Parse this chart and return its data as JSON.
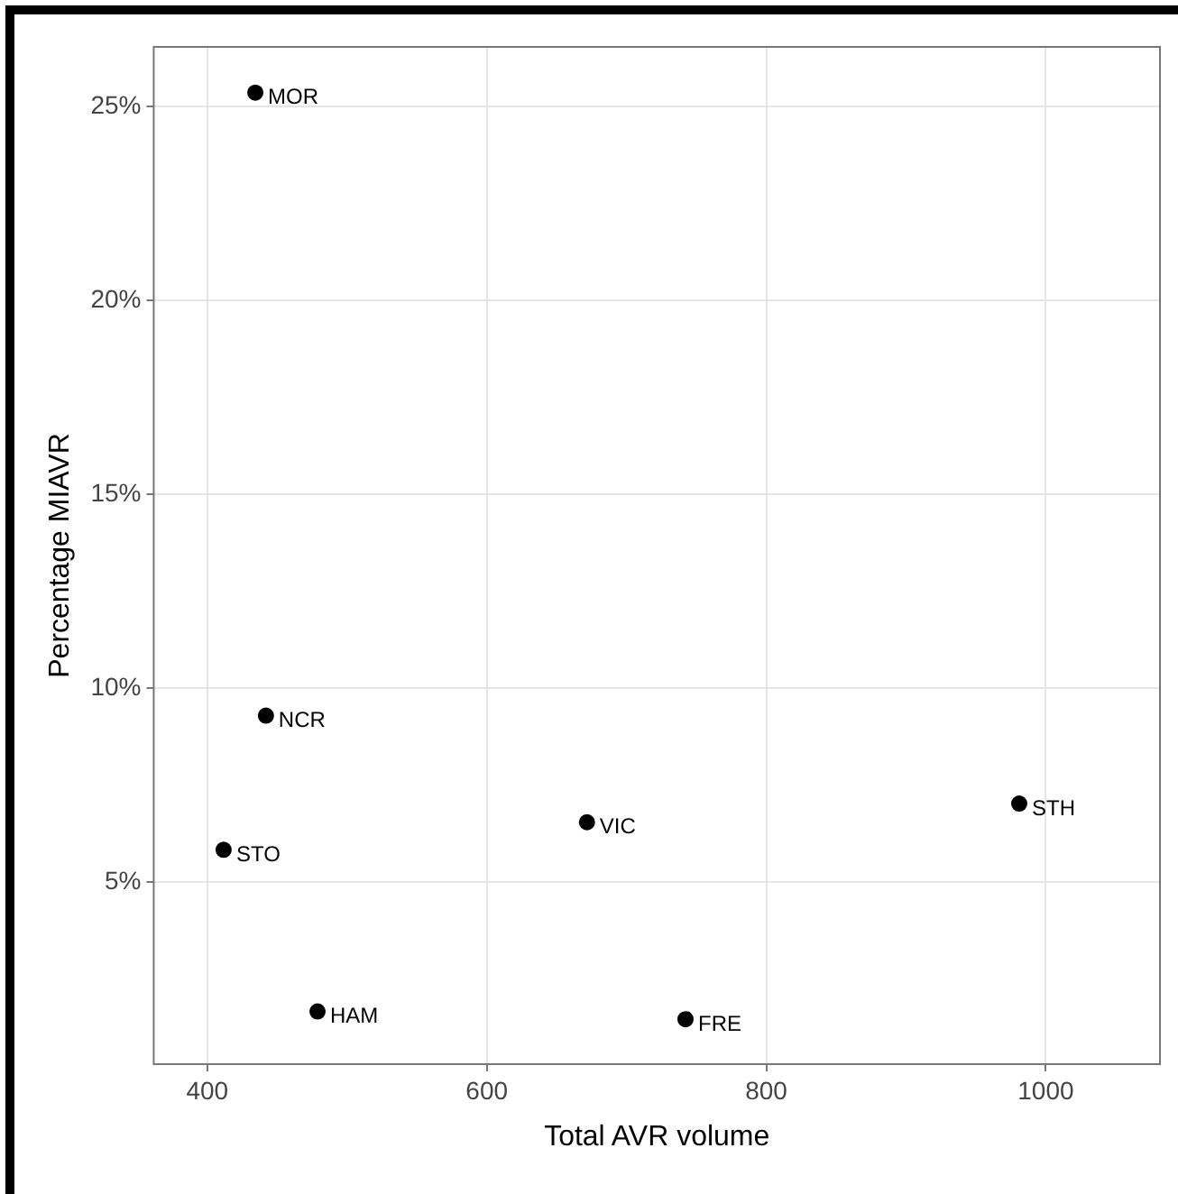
{
  "chart_data": {
    "type": "scatter",
    "xlabel": "Total AVR volume",
    "ylabel": "Percentage MIAVR",
    "x": [
      434.4,
      442,
      411.7,
      478.9,
      671.7,
      742.2,
      981
    ],
    "series": [
      {
        "color": "#000000",
        "values": [
          25.36,
          9.29,
          5.83,
          1.66,
          6.54,
          1.46,
          7.02
        ]
      }
    ],
    "annotations": [
      {
        "text": "MOR",
        "x": 434.4,
        "y": 25.36
      },
      {
        "text": "NCR",
        "x": 442,
        "y": 9.29
      },
      {
        "text": "STO",
        "x": 411.7,
        "y": 5.83
      },
      {
        "text": "HAM",
        "x": 478.9,
        "y": 1.66
      },
      {
        "text": "VIC",
        "x": 671.7,
        "y": 6.54
      },
      {
        "text": "FRE",
        "x": 742.2,
        "y": 1.46
      },
      {
        "text": "STH",
        "x": 981,
        "y": 7.02
      }
    ],
    "xlim": [
      361.7,
      1081.7
    ],
    "xticks": [
      400,
      600,
      800,
      1000
    ],
    "ylim": [
      0.3,
      26.54
    ],
    "yticks": [
      {
        "value": 5,
        "label": "5%"
      },
      {
        "value": 10,
        "label": "10%"
      },
      {
        "value": 15,
        "label": "15%"
      },
      {
        "value": 20,
        "label": "20%"
      },
      {
        "value": 25,
        "label": "25%"
      }
    ],
    "grid": true,
    "legend": false,
    "marker": "circle"
  }
}
